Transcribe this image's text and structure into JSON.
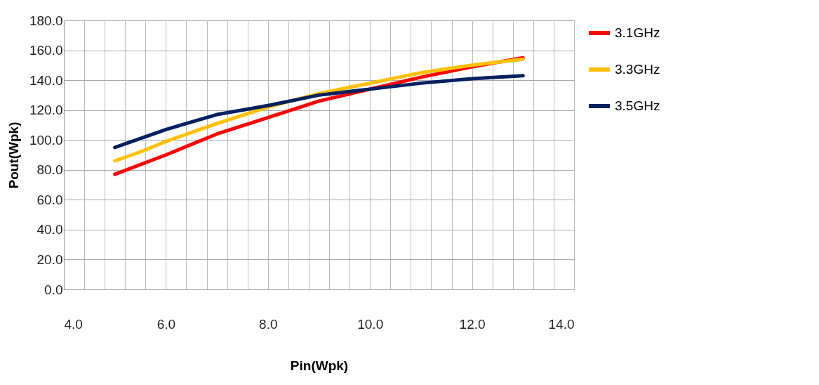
{
  "chart_data": {
    "type": "line",
    "xlabel": "Pin(Wpk)",
    "ylabel": "Pout(Wpk)",
    "xlim": [
      4,
      14
    ],
    "xticks": [
      {
        "value": 4,
        "label": "4.0"
      },
      {
        "value": 4.4,
        "label": null
      },
      {
        "value": 4.8,
        "label": null
      },
      {
        "value": 5.2,
        "label": null
      },
      {
        "value": 5.6,
        "label": null
      },
      {
        "value": 6,
        "label": "6.0"
      },
      {
        "value": 6.4,
        "label": null
      },
      {
        "value": 6.8,
        "label": null
      },
      {
        "value": 7.2,
        "label": null
      },
      {
        "value": 7.6,
        "label": null
      },
      {
        "value": 8,
        "label": "8.0"
      },
      {
        "value": 8.4,
        "label": null
      },
      {
        "value": 8.8,
        "label": null
      },
      {
        "value": 9.2,
        "label": null
      },
      {
        "value": 9.6,
        "label": null
      },
      {
        "value": 10,
        "label": "10.0"
      },
      {
        "value": 10.4,
        "label": null
      },
      {
        "value": 10.8,
        "label": null
      },
      {
        "value": 11.2,
        "label": null
      },
      {
        "value": 11.6,
        "label": null
      },
      {
        "value": 12,
        "label": "12.0"
      },
      {
        "value": 12.4,
        "label": null
      },
      {
        "value": 12.8,
        "label": null
      },
      {
        "value": 13.2,
        "label": null
      },
      {
        "value": 13.6,
        "label": null
      },
      {
        "value": 14,
        "label": "14.0"
      }
    ],
    "ylim": [
      0,
      180
    ],
    "yticks": [
      {
        "value": 0,
        "label": "0.0"
      },
      {
        "value": 20,
        "label": "20.0"
      },
      {
        "value": 40,
        "label": "40.0"
      },
      {
        "value": 60,
        "label": "60.0"
      },
      {
        "value": 80,
        "label": "80.0"
      },
      {
        "value": 100,
        "label": "100.0"
      },
      {
        "value": 120,
        "label": "120.0"
      },
      {
        "value": 140,
        "label": "140.0"
      },
      {
        "value": 160,
        "label": "160.0"
      },
      {
        "value": 180,
        "label": "180.0"
      }
    ],
    "grid": true,
    "legend": "right",
    "marker": "none",
    "line_style": "solid",
    "series": [
      {
        "name": "3.1GHz",
        "color": "#ff0000",
        "x": [
          5,
          6,
          7,
          8,
          9,
          10,
          11,
          12,
          13
        ],
        "values": [
          77,
          90,
          104,
          115,
          126,
          134,
          142,
          149,
          155
        ]
      },
      {
        "name": "3.3GHz",
        "color": "#ffc000",
        "x": [
          5,
          5.5,
          6,
          7,
          8,
          9,
          10,
          11,
          12,
          13
        ],
        "values": [
          86,
          92,
          99,
          111,
          122,
          131,
          138,
          145,
          150,
          154
        ]
      },
      {
        "name": "3.5GHz",
        "color": "#002060",
        "x": [
          5,
          6,
          7,
          8,
          9,
          10,
          11,
          12,
          13
        ],
        "values": [
          95,
          107,
          117,
          123,
          130,
          134,
          138,
          141,
          143
        ]
      }
    ]
  }
}
